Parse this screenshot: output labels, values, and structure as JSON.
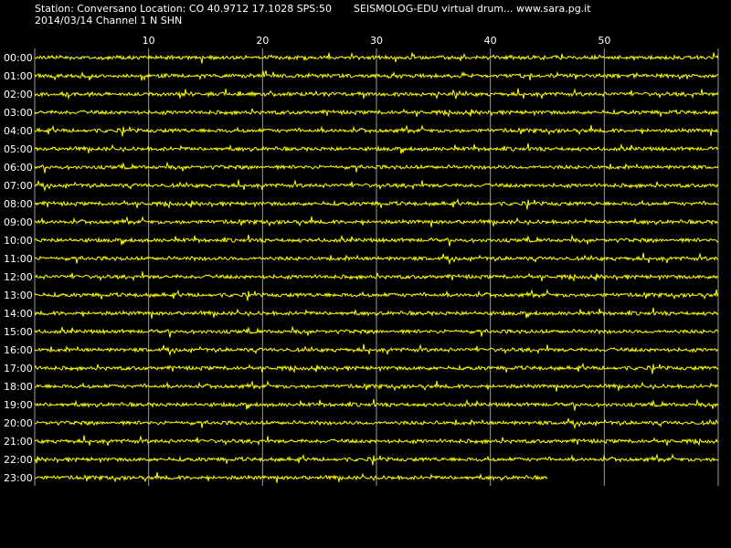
{
  "header": {
    "station_line": "Station: Conversano Location: CO 40.9712 17.1028 SPS:50",
    "title_line": "SEISMOLOG-EDU virtual drum... www.sara.pg.it",
    "date_line": "2014/03/14  Channel 1 N SHN"
  },
  "drum": {
    "minute_ticks": [
      "10",
      "20",
      "30",
      "40",
      "50"
    ],
    "hours": [
      "00:00",
      "01:00",
      "02:00",
      "03:00",
      "04:00",
      "05:00",
      "06:00",
      "07:00",
      "08:00",
      "09:00",
      "10:00",
      "11:00",
      "12:00",
      "13:00",
      "14:00",
      "15:00",
      "16:00",
      "17:00",
      "18:00",
      "19:00",
      "20:00",
      "21:00",
      "22:00",
      "23:00"
    ],
    "last_trace_minutes": 45,
    "trace_color": "#ffff00",
    "grid_color": "#9a9a9a",
    "background": "#000000"
  }
}
